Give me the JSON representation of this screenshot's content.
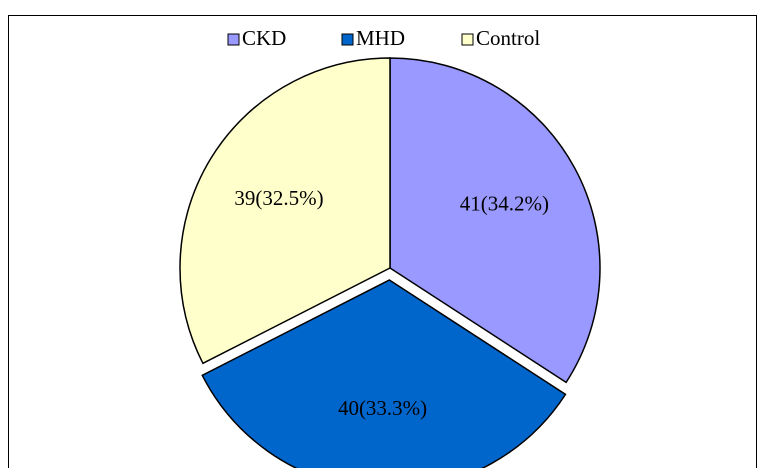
{
  "chart_data": {
    "type": "pie",
    "categories": [
      "CKD",
      "MHD",
      "Control"
    ],
    "values": [
      41,
      40,
      39
    ],
    "value_labels": [
      "41(34.2%)",
      "40(33.3%)",
      "39(32.5%)"
    ],
    "colors": [
      "#9999ff",
      "#0066cc",
      "#ffffcc"
    ],
    "exploded": [
      false,
      true,
      false
    ],
    "legend": "top"
  }
}
